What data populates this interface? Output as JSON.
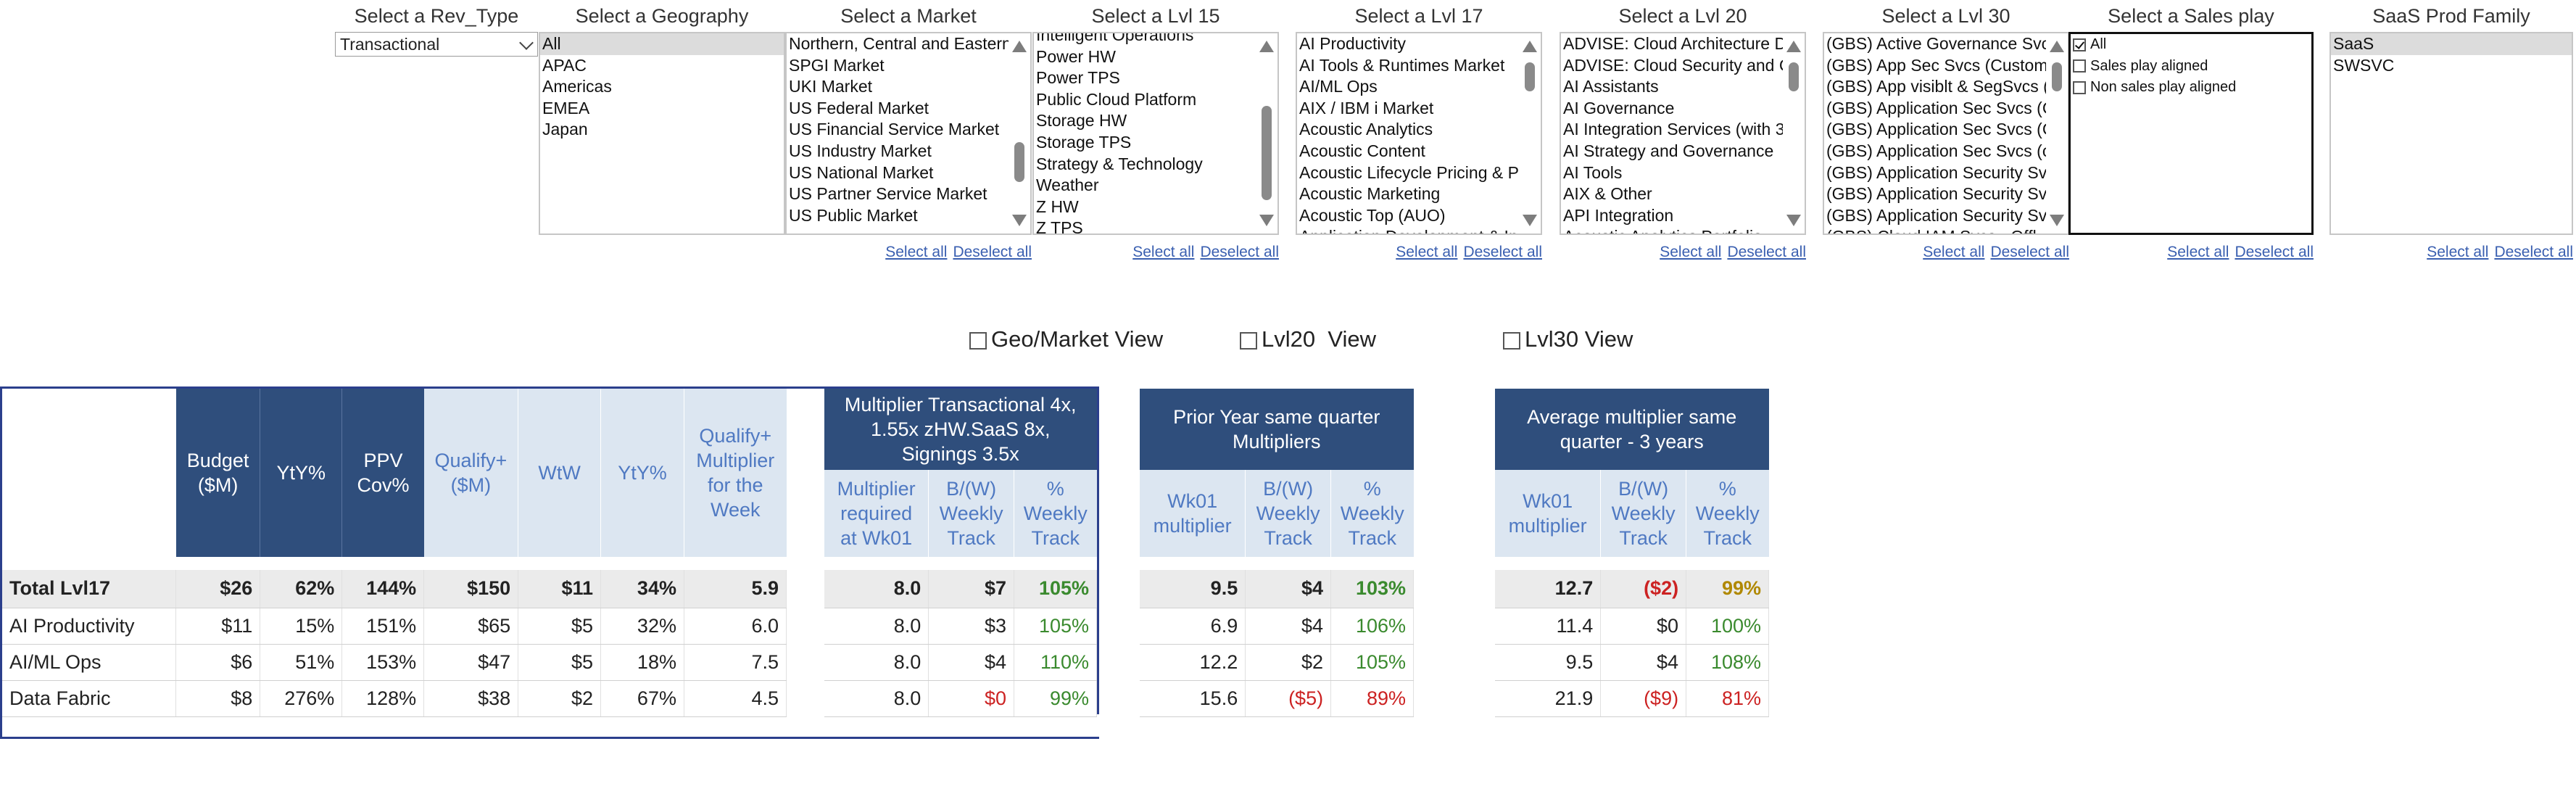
{
  "filters": {
    "rev_type": {
      "title": "Select a Rev_Type",
      "value": "Transactional"
    },
    "geography": {
      "title": "Select a Geography",
      "items": [
        "All",
        "APAC",
        "Americas",
        "EMEA",
        "Japan"
      ]
    },
    "market": {
      "title": "Select a Market",
      "items": [
        "Northern, Central and Eastern",
        "SPGI Market",
        "UKI Market",
        "US Federal Market",
        "US Financial Service Market",
        "US Industry Market",
        "US National Market",
        "US Partner Service Market",
        "US Public Market"
      ]
    },
    "lvl15": {
      "title": "Select a Lvl 15",
      "items": [
        "Intelligent Operations",
        "Power HW",
        "Power TPS",
        "Public Cloud Platform",
        "Storage HW",
        "Storage TPS",
        "Strategy & Technology",
        "Weather",
        "Z HW",
        "Z TPS"
      ]
    },
    "lvl17": {
      "title": "Select a Lvl 17",
      "items": [
        "AI Productivity",
        "AI Tools & Runtimes Market",
        "AI/ML Ops",
        "AIX / IBM i Market",
        "Acoustic Analytics",
        "Acoustic Content",
        "Acoustic Lifecycle Pricing & Pr",
        "Acoustic Marketing",
        "Acoustic Top (AUO)",
        "Application Development & In"
      ]
    },
    "lvl20": {
      "title": "Select a Lvl 20",
      "items": [
        "ADVISE: Cloud Architecture D",
        "ADVISE: Cloud Security and C",
        "AI Assistants",
        "AI Governance",
        "AI Integration Services (with 3",
        "AI Strategy and Governance",
        "AI Tools",
        "AIX & Other",
        "API Integration",
        "Acoustic Analytics Portfolio"
      ]
    },
    "lvl30": {
      "title": "Select a Lvl 30",
      "items": [
        "(GBS) Active Governance Svcs",
        "(GBS) App Sec Svcs (Custom",
        "(GBS) App visiblt & SegSvcs (",
        "(GBS) Application Sec Svcs (C",
        "(GBS) Application Sec Svcs (C",
        "(GBS) Application Sec Svcs (c",
        "(GBS) Application Security Svc",
        "(GBS) Application Security Svc",
        "(GBS) Application Security Svc",
        "(GBS) Cloud IAM Svcs - Offl"
      ]
    },
    "sales_play": {
      "title": "Select a Sales play",
      "items": [
        "All",
        "Sales play aligned",
        "Non sales play aligned"
      ],
      "checked": [
        true,
        false,
        false
      ]
    },
    "saas_family": {
      "title": "SaaS Prod Family",
      "items": [
        "SaaS",
        "SWSVC"
      ]
    },
    "select_all": "Select all",
    "deselect_all": "Deselect all"
  },
  "views": {
    "geo_market": "Geo/Market View",
    "lvl20": "Lvl20  View",
    "lvl30": "Lvl30 View"
  },
  "main_table": {
    "headers": [
      "Budget ($M)",
      "YtY%",
      "PPV Cov%",
      "Qualify+ ($M)",
      "WtW",
      "YtY%",
      "Qualify+ Multiplier for the Week"
    ],
    "rows": [
      {
        "label": "Total Lvl17",
        "cells": [
          "$26",
          "62%",
          "144%",
          "$150",
          "$11",
          "34%",
          "5.9"
        ]
      },
      {
        "label": "AI Productivity",
        "cells": [
          "$11",
          "15%",
          "151%",
          "$65",
          "$5",
          "32%",
          "6.0"
        ]
      },
      {
        "label": "AI/ML Ops",
        "cells": [
          "$6",
          "51%",
          "153%",
          "$47",
          "$5",
          "18%",
          "7.5"
        ]
      },
      {
        "label": "Data Fabric",
        "cells": [
          "$8",
          "276%",
          "128%",
          "$38",
          "$2",
          "67%",
          "4.5"
        ]
      }
    ]
  },
  "multiplier_table": {
    "title": "Multiplier Transactional 4x, 1.55x zHW.SaaS 8x, Signings 3.5x",
    "headers": [
      "Multiplier required at Wk01",
      "B/(W) Weekly Track",
      "% Weekly Track"
    ],
    "rows": [
      {
        "cells": [
          "8.0",
          "$7",
          "105%"
        ],
        "status": [
          "",
          "",
          "pos"
        ]
      },
      {
        "cells": [
          "8.0",
          "$3",
          "105%"
        ],
        "status": [
          "",
          "",
          "pos"
        ]
      },
      {
        "cells": [
          "8.0",
          "$4",
          "110%"
        ],
        "status": [
          "",
          "",
          "pos"
        ]
      },
      {
        "cells": [
          "8.0",
          "$0",
          "99%"
        ],
        "status": [
          "",
          "neg",
          "pos"
        ]
      }
    ]
  },
  "prior_year_table": {
    "title": "Prior Year same quarter Multipliers",
    "headers": [
      "Wk01 multiplier",
      "B/(W) Weekly Track",
      "% Weekly Track"
    ],
    "rows": [
      {
        "cells": [
          "9.5",
          "$4",
          "103%"
        ],
        "status": [
          "",
          "",
          "pos"
        ]
      },
      {
        "cells": [
          "6.9",
          "$4",
          "106%"
        ],
        "status": [
          "",
          "",
          "pos"
        ]
      },
      {
        "cells": [
          "12.2",
          "$2",
          "105%"
        ],
        "status": [
          "",
          "",
          "pos"
        ]
      },
      {
        "cells": [
          "15.6",
          "($5)",
          "89%"
        ],
        "status": [
          "",
          "neg",
          "neg"
        ]
      }
    ]
  },
  "avg_table": {
    "title": "Average multiplier same quarter - 3 years",
    "headers": [
      "Wk01 multiplier",
      "B/(W) Weekly Track",
      "% Weekly Track"
    ],
    "rows": [
      {
        "cells": [
          "12.7",
          "($2)",
          "99%"
        ],
        "status": [
          "",
          "neg",
          "amb"
        ]
      },
      {
        "cells": [
          "11.4",
          "$0",
          "100%"
        ],
        "status": [
          "",
          "",
          "pos"
        ]
      },
      {
        "cells": [
          "9.5",
          "$4",
          "108%"
        ],
        "status": [
          "",
          "",
          "pos"
        ]
      },
      {
        "cells": [
          "21.9",
          "($9)",
          "81%"
        ],
        "status": [
          "",
          "neg",
          "neg"
        ]
      }
    ]
  },
  "colors": {
    "header_dark": "#2f4e7c",
    "header_light": "#dce6f1",
    "positive": "#3a8a2e",
    "negative": "#cc2222",
    "amber": "#b08800"
  }
}
